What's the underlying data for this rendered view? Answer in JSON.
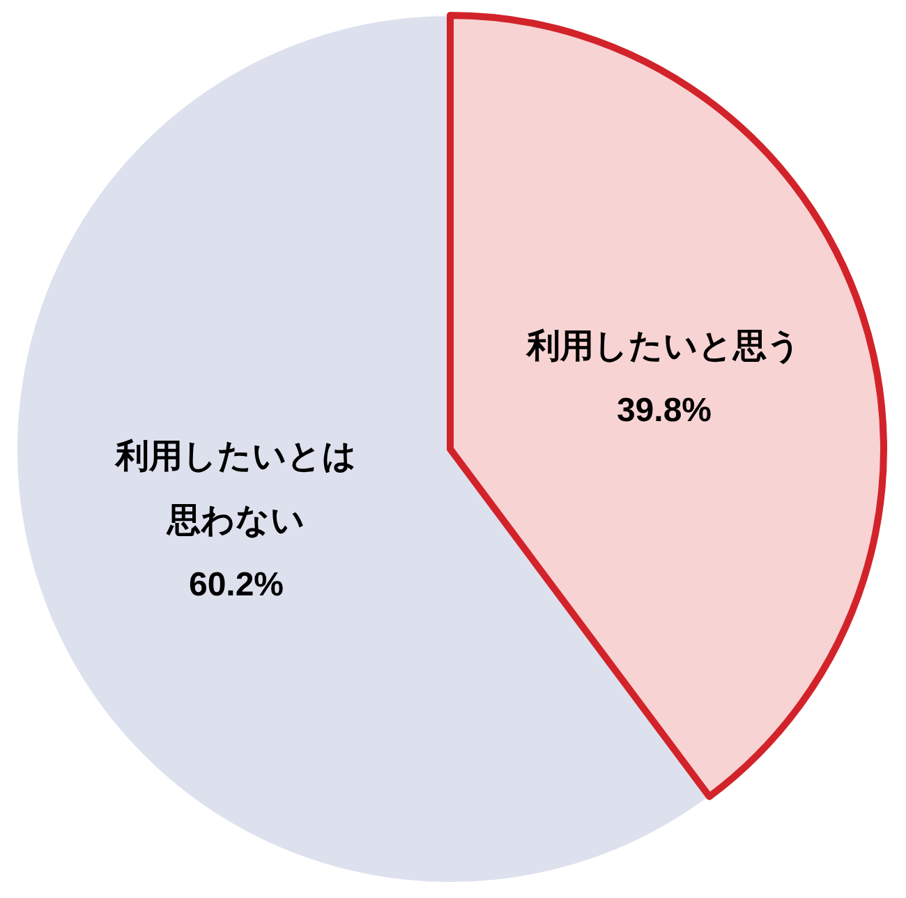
{
  "chart_data": {
    "type": "pie",
    "categories": [
      "利用したいと思う",
      "利用したいとは思わない"
    ],
    "values": [
      39.8,
      60.2
    ],
    "colors": [
      "#f8d3d3",
      "#dde1ee"
    ],
    "value_labels": [
      "39.8%",
      "60.2%"
    ]
  }
}
